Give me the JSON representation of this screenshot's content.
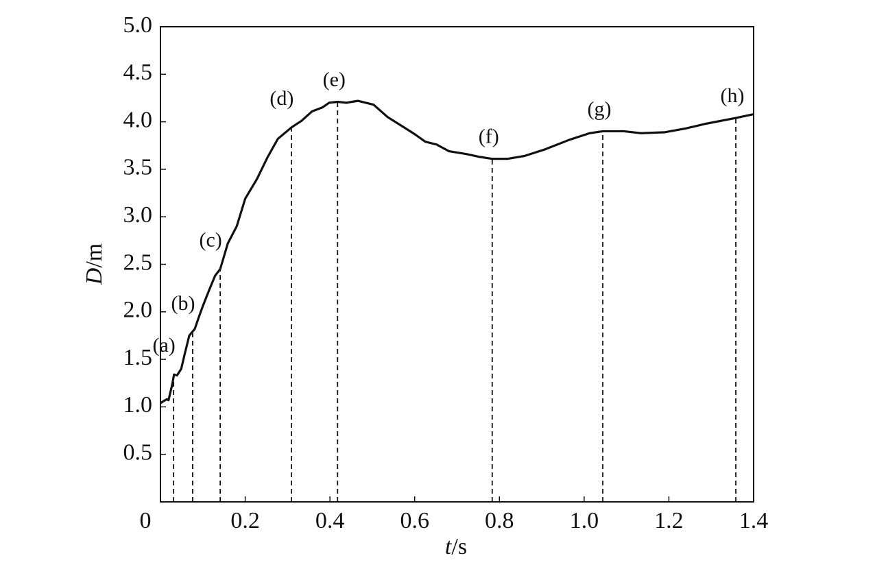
{
  "chart_data": {
    "type": "line",
    "xlabel": "t/s",
    "ylabel": "D/m",
    "xlim": [
      0,
      1.4
    ],
    "ylim": [
      0,
      5
    ],
    "xticks": [
      0,
      0.2,
      0.4,
      0.6,
      0.8,
      {
        "value": 1,
        "label": "1.0"
      },
      1.2,
      1.4
    ],
    "yticks": [
      0.5,
      {
        "value": 1,
        "label": "1.0"
      },
      1.5,
      {
        "value": 2,
        "label": "2.0"
      },
      2.5,
      {
        "value": 3,
        "label": "3.0"
      },
      3.5,
      {
        "value": 4,
        "label": "4.0"
      },
      4.5,
      {
        "value": 5,
        "label": "5.0"
      }
    ],
    "grid": false,
    "series": [
      {
        "color": "#111111",
        "x": [
          0,
          0.015,
          0.019,
          0.028,
          0.032,
          0.039,
          0.049,
          0.058,
          0.068,
          0.081,
          0.091,
          0.1,
          0.115,
          0.129,
          0.141,
          0.159,
          0.18,
          0.2,
          0.228,
          0.252,
          0.277,
          0.309,
          0.333,
          0.358,
          0.382,
          0.398,
          0.418,
          0.439,
          0.466,
          0.503,
          0.536,
          0.568,
          0.6,
          0.625,
          0.652,
          0.681,
          0.722,
          0.754,
          0.783,
          0.819,
          0.859,
          0.908,
          0.965,
          1.013,
          1.044,
          1.094,
          1.134,
          1.191,
          1.24,
          1.288,
          1.358,
          1.4
        ],
        "values": [
          1.04,
          1.08,
          1.07,
          1.24,
          1.34,
          1.33,
          1.4,
          1.57,
          1.75,
          1.82,
          1.95,
          2.06,
          2.23,
          2.38,
          2.45,
          2.72,
          2.9,
          3.19,
          3.4,
          3.62,
          3.82,
          3.94,
          4.01,
          4.11,
          4.15,
          4.2,
          4.21,
          4.2,
          4.22,
          4.18,
          4.05,
          3.96,
          3.87,
          3.79,
          3.76,
          3.69,
          3.66,
          3.63,
          3.61,
          3.61,
          3.64,
          3.71,
          3.81,
          3.88,
          3.9,
          3.9,
          3.88,
          3.89,
          3.93,
          3.98,
          4.04,
          4.08
        ]
      }
    ],
    "annotations": [
      {
        "label": "(a)",
        "x": 0.031,
        "y": 1.34
      },
      {
        "label": "(b)",
        "x": 0.076,
        "y": 1.78
      },
      {
        "label": "(c)",
        "x": 0.141,
        "y": 2.45
      },
      {
        "label": "(d)",
        "x": 0.309,
        "y": 3.94
      },
      {
        "label": "(e)",
        "x": 0.418,
        "y": 4.21
      },
      {
        "label": "(f)",
        "x": 0.783,
        "y": 3.61
      },
      {
        "label": "(g)",
        "x": 1.044,
        "y": 3.9
      },
      {
        "label": "(h)",
        "x": 1.358,
        "y": 4.04
      }
    ]
  }
}
